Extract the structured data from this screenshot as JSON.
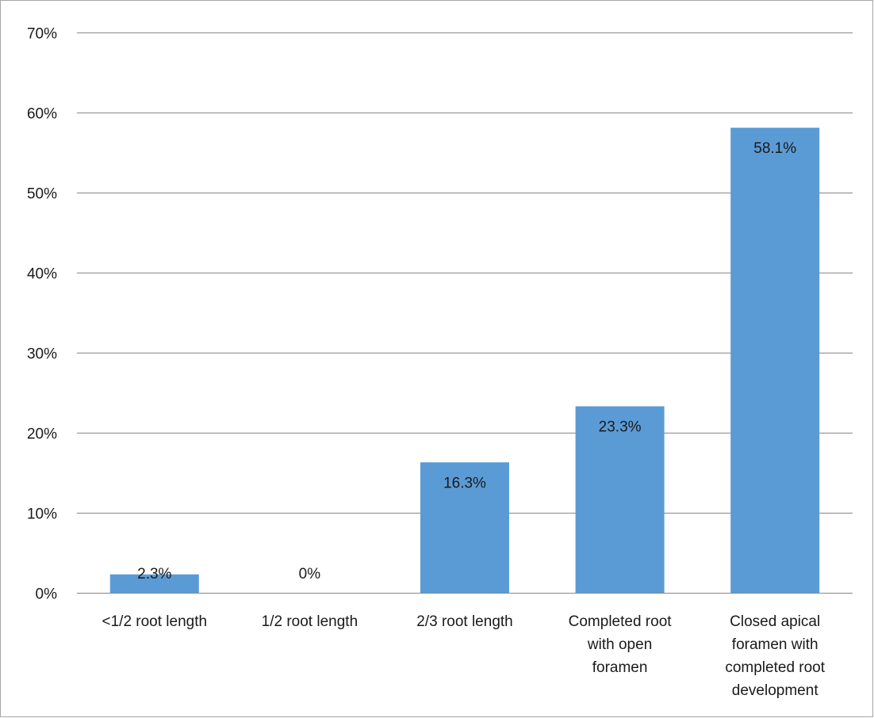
{
  "chart_data": {
    "type": "bar",
    "title": "",
    "xlabel": "",
    "ylabel": "",
    "categories": [
      [
        "<1/2 root length"
      ],
      [
        "1/2 root length"
      ],
      [
        "2/3 root length"
      ],
      [
        "Completed root",
        "with open",
        "foramen"
      ],
      [
        "Closed apical",
        "foramen with",
        "completed root",
        "development"
      ]
    ],
    "values": [
      2.3,
      0,
      16.3,
      23.3,
      58.1
    ],
    "data_labels": [
      "2.3%",
      "0%",
      "16.3%",
      "23.3%",
      "58.1%"
    ],
    "ylim": [
      0,
      70
    ],
    "yticks": [
      0,
      10,
      20,
      30,
      40,
      50,
      60,
      70
    ],
    "ytick_labels": [
      "0%",
      "10%",
      "20%",
      "30%",
      "40%",
      "50%",
      "60%",
      "70%"
    ],
    "grid": true,
    "legend": "none",
    "colors": {
      "bar": "#5b9bd5",
      "grid": "#878787",
      "text": "#1a1a1a"
    }
  }
}
